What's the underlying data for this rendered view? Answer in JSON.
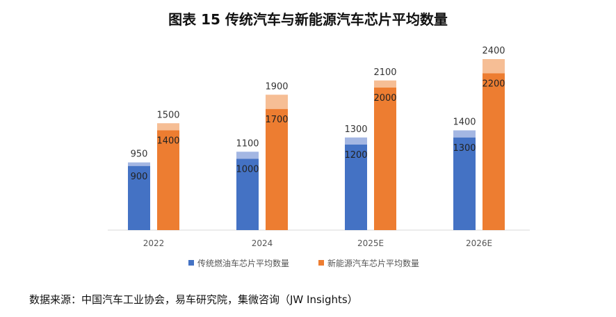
{
  "title": "图表  15 传统汽车与新能源汽车芯片平均数量",
  "source": "数据来源：中国汽车工业协会，易车研究院，集微咨询（JW Insights）",
  "chart_data": {
    "type": "bar",
    "categories": [
      "2022",
      "2024",
      "2025E",
      "2026E"
    ],
    "series": [
      {
        "name": "传统燃油车芯片平均数量",
        "top_values": [
          950,
          1100,
          1300,
          1400
        ],
        "bar_values": [
          900,
          1000,
          1200,
          1300
        ],
        "color": "#4472C4",
        "light_color": "#A4B7E3"
      },
      {
        "name": "新能源汽车芯片平均数量",
        "top_values": [
          1500,
          1900,
          2100,
          2400
        ],
        "bar_values": [
          1400,
          1700,
          2000,
          2200
        ],
        "color": "#ED7D31",
        "light_color": "#F6BE95"
      }
    ],
    "ylim": [
      0,
      2400
    ],
    "grid": false,
    "legend_position": "bottom"
  }
}
